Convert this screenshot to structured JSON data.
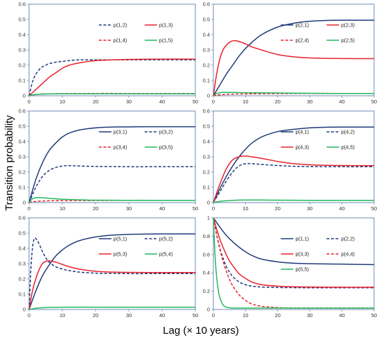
{
  "figure": {
    "ylabel": "Transition probability",
    "xlabel": "Lag (× 10 years)"
  },
  "chart_data": [
    {
      "type": "line",
      "title": "",
      "xlim": [
        0,
        50
      ],
      "ylim": [
        0,
        0.6
      ],
      "xticks": [
        0,
        10,
        20,
        30,
        40,
        50
      ],
      "yticks": [
        0,
        0.1,
        0.2,
        0.3,
        0.4,
        0.5,
        0.6
      ],
      "legend_columns": 2,
      "legend_placement": "top-center",
      "series": [
        {
          "name": "p(1,2)",
          "color": "#1f3a7a",
          "dash": "dashed",
          "x": [
            0,
            1,
            2,
            3,
            4,
            5,
            6,
            8,
            10,
            12,
            15,
            20,
            25,
            30,
            40,
            50
          ],
          "y": [
            0,
            0.09,
            0.14,
            0.17,
            0.19,
            0.2,
            0.21,
            0.22,
            0.225,
            0.23,
            0.235,
            0.235,
            0.235,
            0.235,
            0.235,
            0.235
          ]
        },
        {
          "name": "p(1,3)",
          "color": "#e8202a",
          "dash": "solid",
          "x": [
            0,
            2,
            4,
            6,
            8,
            10,
            12,
            15,
            20,
            25,
            30,
            40,
            50
          ],
          "y": [
            0,
            0.04,
            0.08,
            0.12,
            0.15,
            0.18,
            0.2,
            0.215,
            0.23,
            0.235,
            0.238,
            0.24,
            0.24
          ]
        },
        {
          "name": "p(1,4)",
          "color": "#e8202a",
          "dash": "dashed",
          "x": [
            0,
            1,
            3,
            5,
            10,
            20,
            30,
            40,
            50
          ],
          "y": [
            0,
            0.005,
            0.01,
            0.012,
            0.014,
            0.015,
            0.015,
            0.015,
            0.015
          ]
        },
        {
          "name": "p(1,5)",
          "color": "#1fb85a",
          "dash": "solid",
          "x": [
            0,
            1,
            3,
            5,
            10,
            20,
            30,
            40,
            50
          ],
          "y": [
            0,
            0.006,
            0.01,
            0.012,
            0.013,
            0.013,
            0.013,
            0.013,
            0.013
          ]
        }
      ]
    },
    {
      "type": "line",
      "title": "",
      "xlim": [
        0,
        50
      ],
      "ylim": [
        0,
        0.6
      ],
      "xticks": [
        0,
        10,
        20,
        30,
        40,
        50
      ],
      "yticks": [
        0,
        0.1,
        0.2,
        0.3,
        0.4,
        0.5,
        0.6
      ],
      "legend_columns": 2,
      "legend_placement": "top-center",
      "series": [
        {
          "name": "p(2,1)",
          "color": "#1f3a7a",
          "dash": "solid",
          "x": [
            0,
            2,
            4,
            6,
            8,
            10,
            12,
            15,
            20,
            25,
            30,
            35,
            40,
            50
          ],
          "y": [
            0,
            0.07,
            0.14,
            0.2,
            0.26,
            0.31,
            0.35,
            0.4,
            0.45,
            0.475,
            0.488,
            0.493,
            0.495,
            0.495
          ]
        },
        {
          "name": "p(2,3)",
          "color": "#e8202a",
          "dash": "solid",
          "x": [
            0,
            1,
            2,
            3,
            4,
            5,
            6,
            7,
            8,
            10,
            12,
            15,
            20,
            25,
            30,
            40,
            50
          ],
          "y": [
            0,
            0.14,
            0.24,
            0.3,
            0.33,
            0.35,
            0.36,
            0.36,
            0.355,
            0.34,
            0.32,
            0.3,
            0.27,
            0.255,
            0.248,
            0.244,
            0.243
          ]
        },
        {
          "name": "p(2,4)",
          "color": "#e8202a",
          "dash": "dashed",
          "x": [
            0,
            2,
            5,
            10,
            20,
            30,
            40,
            50
          ],
          "y": [
            0,
            0.006,
            0.01,
            0.012,
            0.014,
            0.015,
            0.015,
            0.015
          ]
        },
        {
          "name": "p(2,5)",
          "color": "#1fb85a",
          "dash": "solid",
          "x": [
            0,
            1,
            2,
            3,
            5,
            10,
            20,
            30,
            40,
            50
          ],
          "y": [
            0,
            0.015,
            0.02,
            0.022,
            0.022,
            0.02,
            0.018,
            0.016,
            0.015,
            0.015
          ]
        }
      ]
    },
    {
      "type": "line",
      "title": "",
      "xlim": [
        0,
        50
      ],
      "ylim": [
        0,
        0.6
      ],
      "xticks": [
        0,
        10,
        20,
        30,
        40,
        50
      ],
      "yticks": [
        0,
        0.1,
        0.2,
        0.3,
        0.4,
        0.5,
        0.6
      ],
      "legend_columns": 2,
      "legend_placement": "top-center",
      "series": [
        {
          "name": "p(3,1)",
          "color": "#1f3a7a",
          "dash": "solid",
          "x": [
            0,
            2,
            4,
            6,
            8,
            10,
            12,
            15,
            20,
            25,
            30,
            35,
            40,
            50
          ],
          "y": [
            0,
            0.15,
            0.26,
            0.34,
            0.39,
            0.43,
            0.455,
            0.475,
            0.49,
            0.495,
            0.496,
            0.497,
            0.497,
            0.497
          ]
        },
        {
          "name": "p(3,2)",
          "color": "#1f3a7a",
          "dash": "dashed",
          "x": [
            0,
            2,
            4,
            6,
            8,
            10,
            12,
            15,
            20,
            25,
            30,
            40,
            50
          ],
          "y": [
            0,
            0.1,
            0.17,
            0.21,
            0.23,
            0.24,
            0.242,
            0.24,
            0.237,
            0.236,
            0.235,
            0.235,
            0.235
          ]
        },
        {
          "name": "p(3,4)",
          "color": "#e8202a",
          "dash": "dashed",
          "x": [
            0,
            2,
            5,
            10,
            20,
            30,
            40,
            50
          ],
          "y": [
            0,
            0.008,
            0.011,
            0.013,
            0.014,
            0.015,
            0.015,
            0.015
          ]
        },
        {
          "name": "p(3,5)",
          "color": "#1fb85a",
          "dash": "solid",
          "x": [
            0,
            1,
            2,
            3,
            5,
            8,
            10,
            15,
            20,
            30,
            40,
            50
          ],
          "y": [
            0,
            0.025,
            0.032,
            0.033,
            0.03,
            0.025,
            0.022,
            0.018,
            0.016,
            0.015,
            0.015,
            0.015
          ]
        }
      ]
    },
    {
      "type": "line",
      "title": "",
      "xlim": [
        0,
        50
      ],
      "ylim": [
        0,
        0.6
      ],
      "xticks": [
        0,
        10,
        20,
        30,
        40,
        50
      ],
      "yticks": [
        0,
        0.1,
        0.2,
        0.3,
        0.4,
        0.5,
        0.6
      ],
      "legend_columns": 2,
      "legend_placement": "top-center",
      "series": [
        {
          "name": "p(4,1)",
          "color": "#1f3a7a",
          "dash": "solid",
          "x": [
            0,
            2,
            4,
            6,
            8,
            10,
            12,
            15,
            20,
            25,
            30,
            35,
            40,
            50
          ],
          "y": [
            0,
            0.09,
            0.17,
            0.24,
            0.3,
            0.35,
            0.39,
            0.43,
            0.465,
            0.48,
            0.49,
            0.494,
            0.495,
            0.495
          ]
        },
        {
          "name": "p(4,2)",
          "color": "#1f3a7a",
          "dash": "dashed",
          "x": [
            0,
            2,
            4,
            6,
            8,
            10,
            12,
            15,
            20,
            25,
            30,
            40,
            50
          ],
          "y": [
            0,
            0.07,
            0.14,
            0.2,
            0.24,
            0.255,
            0.255,
            0.25,
            0.243,
            0.238,
            0.236,
            0.235,
            0.235
          ]
        },
        {
          "name": "p(4,3)",
          "color": "#e8202a",
          "dash": "solid",
          "x": [
            0,
            2,
            4,
            6,
            8,
            10,
            12,
            15,
            20,
            25,
            30,
            40,
            50
          ],
          "y": [
            0,
            0.12,
            0.22,
            0.28,
            0.3,
            0.305,
            0.3,
            0.29,
            0.27,
            0.255,
            0.248,
            0.243,
            0.242
          ]
        },
        {
          "name": "p(4,5)",
          "color": "#1fb85a",
          "dash": "solid",
          "x": [
            0,
            2,
            4,
            6,
            10,
            15,
            20,
            30,
            40,
            50
          ],
          "y": [
            0,
            0.008,
            0.012,
            0.015,
            0.017,
            0.017,
            0.016,
            0.015,
            0.015,
            0.015
          ]
        }
      ]
    },
    {
      "type": "line",
      "title": "",
      "xlim": [
        0,
        50
      ],
      "ylim": [
        0,
        0.6
      ],
      "xticks": [
        0,
        10,
        20,
        30,
        40,
        50
      ],
      "yticks": [
        0,
        0.1,
        0.2,
        0.3,
        0.4,
        0.5,
        0.6
      ],
      "legend_columns": 2,
      "legend_placement": "top-center",
      "series": [
        {
          "name": "p(5,1)",
          "color": "#1f3a7a",
          "dash": "solid",
          "x": [
            0,
            2,
            4,
            6,
            8,
            10,
            12,
            15,
            20,
            25,
            30,
            35,
            40,
            50
          ],
          "y": [
            0,
            0.12,
            0.22,
            0.29,
            0.35,
            0.39,
            0.42,
            0.45,
            0.475,
            0.487,
            0.492,
            0.494,
            0.495,
            0.495
          ]
        },
        {
          "name": "p(5,2)",
          "color": "#1f3a7a",
          "dash": "dashed",
          "x": [
            0,
            0.5,
            1,
            1.5,
            2,
            3,
            4,
            5,
            6,
            8,
            10,
            12,
            15,
            20,
            25,
            30,
            40,
            50
          ],
          "y": [
            0,
            0.25,
            0.4,
            0.46,
            0.465,
            0.43,
            0.38,
            0.34,
            0.31,
            0.28,
            0.265,
            0.255,
            0.245,
            0.238,
            0.236,
            0.235,
            0.235,
            0.235
          ]
        },
        {
          "name": "p(5,3)",
          "color": "#e8202a",
          "dash": "solid",
          "x": [
            0,
            1,
            2,
            3,
            4,
            5,
            6,
            8,
            10,
            12,
            15,
            20,
            25,
            30,
            40,
            50
          ],
          "y": [
            0,
            0.12,
            0.2,
            0.26,
            0.3,
            0.315,
            0.318,
            0.31,
            0.295,
            0.28,
            0.265,
            0.25,
            0.245,
            0.243,
            0.242,
            0.242
          ]
        },
        {
          "name": "p(5,4)",
          "color": "#1fb85a",
          "dash": "solid",
          "x": [
            0,
            1,
            2,
            4,
            6,
            10,
            20,
            30,
            40,
            50
          ],
          "y": [
            0,
            0.004,
            0.008,
            0.011,
            0.013,
            0.015,
            0.015,
            0.015,
            0.015,
            0.015
          ]
        }
      ]
    },
    {
      "type": "line",
      "title": "",
      "xlim": [
        0,
        50
      ],
      "ylim": [
        0,
        1
      ],
      "xticks": [
        0,
        10,
        20,
        30,
        40,
        50
      ],
      "yticks": [
        0,
        0.2,
        0.4,
        0.6,
        0.8,
        1
      ],
      "legend_columns": 2,
      "legend_placement": "top-center",
      "series": [
        {
          "name": "p(1,1)",
          "color": "#1f3a7a",
          "dash": "solid",
          "x": [
            0,
            2,
            4,
            6,
            8,
            10,
            12,
            15,
            20,
            25,
            30,
            35,
            40,
            50
          ],
          "y": [
            1,
            0.9,
            0.81,
            0.74,
            0.68,
            0.63,
            0.59,
            0.55,
            0.52,
            0.505,
            0.5,
            0.497,
            0.495,
            0.49
          ]
        },
        {
          "name": "p(2,2)",
          "color": "#1f3a7a",
          "dash": "dashed",
          "x": [
            0,
            1,
            2,
            3,
            4,
            5,
            6,
            8,
            10,
            12,
            15,
            20,
            25,
            30,
            40,
            50
          ],
          "y": [
            1,
            0.82,
            0.67,
            0.56,
            0.47,
            0.41,
            0.36,
            0.3,
            0.27,
            0.255,
            0.245,
            0.24,
            0.238,
            0.237,
            0.237,
            0.237
          ]
        },
        {
          "name": "p(3,3)",
          "color": "#e8202a",
          "dash": "solid",
          "x": [
            0,
            1,
            2,
            3,
            4,
            5,
            6,
            8,
            10,
            12,
            15,
            20,
            25,
            30,
            40,
            50
          ],
          "y": [
            1,
            0.88,
            0.77,
            0.68,
            0.6,
            0.53,
            0.48,
            0.39,
            0.34,
            0.3,
            0.27,
            0.255,
            0.248,
            0.245,
            0.243,
            0.243
          ]
        },
        {
          "name": "p(4,4)",
          "color": "#e8202a",
          "dash": "dashed",
          "x": [
            0,
            1,
            2,
            3,
            4,
            5,
            6,
            8,
            10,
            12,
            15,
            20,
            25,
            30,
            40,
            50
          ],
          "y": [
            1,
            0.82,
            0.66,
            0.53,
            0.42,
            0.33,
            0.26,
            0.16,
            0.1,
            0.06,
            0.035,
            0.02,
            0.016,
            0.015,
            0.015,
            0.015
          ]
        },
        {
          "name": "p(5,5)",
          "color": "#1fb85a",
          "dash": "solid",
          "x": [
            0,
            0.5,
            1,
            1.5,
            2,
            3,
            4,
            5,
            6,
            8,
            10,
            20,
            30,
            40,
            50
          ],
          "y": [
            1,
            0.6,
            0.36,
            0.22,
            0.13,
            0.05,
            0.025,
            0.018,
            0.016,
            0.015,
            0.015,
            0.015,
            0.015,
            0.015,
            0.015
          ]
        }
      ]
    }
  ]
}
